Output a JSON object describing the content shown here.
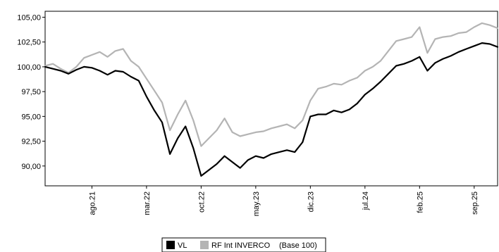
{
  "chart_data": {
    "type": "line",
    "title": "",
    "xlabel": "",
    "ylabel": "",
    "ylim": [
      88.0,
      105.6
    ],
    "x_range": [
      "2021-02",
      "2025-12"
    ],
    "y_ticks": [
      "105,00",
      "102,50",
      "100,00",
      "97,50",
      "95,00",
      "92,50",
      "90,00"
    ],
    "y_tick_values": [
      105.0,
      102.5,
      100.0,
      97.5,
      95.0,
      92.5,
      90.0
    ],
    "x_ticks": [
      {
        "label": "ago.21",
        "date": "2021-08"
      },
      {
        "label": "mar.22",
        "date": "2022-03"
      },
      {
        "label": "oct.22",
        "date": "2022-10"
      },
      {
        "label": "may.23",
        "date": "2023-05"
      },
      {
        "label": "dic.23",
        "date": "2023-12"
      },
      {
        "label": "jul.24",
        "date": "2024-07"
      },
      {
        "label": "feb.25",
        "date": "2025-02"
      },
      {
        "label": "sep.25",
        "date": "2025-09"
      }
    ],
    "grid": false,
    "legend_position": "bottom-center",
    "legend_note": "(Base 100)",
    "series": [
      {
        "name": "VL",
        "color": "#000000",
        "points": [
          [
            "2021-02",
            100.0
          ],
          [
            "2021-03",
            99.8
          ],
          [
            "2021-04",
            99.6
          ],
          [
            "2021-05",
            99.3
          ],
          [
            "2021-06",
            99.7
          ],
          [
            "2021-07",
            100.0
          ],
          [
            "2021-08",
            99.9
          ],
          [
            "2021-09",
            99.6
          ],
          [
            "2021-10",
            99.2
          ],
          [
            "2021-11",
            99.6
          ],
          [
            "2021-12",
            99.5
          ],
          [
            "2022-01",
            99.0
          ],
          [
            "2022-02",
            98.6
          ],
          [
            "2022-03",
            97.0
          ],
          [
            "2022-04",
            95.6
          ],
          [
            "2022-05",
            94.4
          ],
          [
            "2022-06",
            91.2
          ],
          [
            "2022-07",
            92.8
          ],
          [
            "2022-08",
            94.0
          ],
          [
            "2022-09",
            91.8
          ],
          [
            "2022-10",
            89.0
          ],
          [
            "2022-11",
            89.6
          ],
          [
            "2022-12",
            90.2
          ],
          [
            "2023-01",
            91.0
          ],
          [
            "2023-02",
            90.4
          ],
          [
            "2023-03",
            89.8
          ],
          [
            "2023-04",
            90.6
          ],
          [
            "2023-05",
            91.0
          ],
          [
            "2023-06",
            90.8
          ],
          [
            "2023-07",
            91.2
          ],
          [
            "2023-08",
            91.4
          ],
          [
            "2023-09",
            91.6
          ],
          [
            "2023-10",
            91.4
          ],
          [
            "2023-11",
            92.4
          ],
          [
            "2023-12",
            95.0
          ],
          [
            "2024-01",
            95.2
          ],
          [
            "2024-02",
            95.2
          ],
          [
            "2024-03",
            95.6
          ],
          [
            "2024-04",
            95.4
          ],
          [
            "2024-05",
            95.7
          ],
          [
            "2024-06",
            96.3
          ],
          [
            "2024-07",
            97.2
          ],
          [
            "2024-08",
            97.8
          ],
          [
            "2024-09",
            98.5
          ],
          [
            "2024-10",
            99.3
          ],
          [
            "2024-11",
            100.1
          ],
          [
            "2024-12",
            100.3
          ],
          [
            "2025-01",
            100.6
          ],
          [
            "2025-02",
            101.0
          ],
          [
            "2025-03",
            99.6
          ],
          [
            "2025-04",
            100.4
          ],
          [
            "2025-05",
            100.8
          ],
          [
            "2025-06",
            101.1
          ],
          [
            "2025-07",
            101.5
          ],
          [
            "2025-08",
            101.8
          ],
          [
            "2025-09",
            102.1
          ],
          [
            "2025-10",
            102.4
          ],
          [
            "2025-11",
            102.3
          ],
          [
            "2025-12",
            102.0
          ]
        ]
      },
      {
        "name": "RF Int INVERCO",
        "color": "#b4b4b4",
        "points": [
          [
            "2021-02",
            100.1
          ],
          [
            "2021-03",
            100.3
          ],
          [
            "2021-04",
            99.8
          ],
          [
            "2021-05",
            99.4
          ],
          [
            "2021-06",
            100.0
          ],
          [
            "2021-07",
            100.9
          ],
          [
            "2021-08",
            101.2
          ],
          [
            "2021-09",
            101.5
          ],
          [
            "2021-10",
            101.0
          ],
          [
            "2021-11",
            101.6
          ],
          [
            "2021-12",
            101.8
          ],
          [
            "2022-01",
            100.6
          ],
          [
            "2022-02",
            100.0
          ],
          [
            "2022-03",
            98.8
          ],
          [
            "2022-04",
            97.6
          ],
          [
            "2022-05",
            96.4
          ],
          [
            "2022-06",
            93.6
          ],
          [
            "2022-07",
            95.2
          ],
          [
            "2022-08",
            96.6
          ],
          [
            "2022-09",
            94.6
          ],
          [
            "2022-10",
            92.0
          ],
          [
            "2022-11",
            92.8
          ],
          [
            "2022-12",
            93.6
          ],
          [
            "2023-01",
            94.8
          ],
          [
            "2023-02",
            93.4
          ],
          [
            "2023-03",
            93.0
          ],
          [
            "2023-04",
            93.2
          ],
          [
            "2023-05",
            93.4
          ],
          [
            "2023-06",
            93.5
          ],
          [
            "2023-07",
            93.8
          ],
          [
            "2023-08",
            94.0
          ],
          [
            "2023-09",
            94.2
          ],
          [
            "2023-10",
            93.8
          ],
          [
            "2023-11",
            94.6
          ],
          [
            "2023-12",
            96.6
          ],
          [
            "2024-01",
            97.8
          ],
          [
            "2024-02",
            98.0
          ],
          [
            "2024-03",
            98.3
          ],
          [
            "2024-04",
            98.2
          ],
          [
            "2024-05",
            98.6
          ],
          [
            "2024-06",
            98.9
          ],
          [
            "2024-07",
            99.6
          ],
          [
            "2024-08",
            100.0
          ],
          [
            "2024-09",
            100.6
          ],
          [
            "2024-10",
            101.6
          ],
          [
            "2024-11",
            102.6
          ],
          [
            "2024-12",
            102.8
          ],
          [
            "2025-01",
            103.0
          ],
          [
            "2025-02",
            104.0
          ],
          [
            "2025-03",
            101.4
          ],
          [
            "2025-04",
            102.8
          ],
          [
            "2025-05",
            103.0
          ],
          [
            "2025-06",
            103.1
          ],
          [
            "2025-07",
            103.4
          ],
          [
            "2025-08",
            103.5
          ],
          [
            "2025-09",
            104.0
          ],
          [
            "2025-10",
            104.4
          ],
          [
            "2025-11",
            104.2
          ],
          [
            "2025-12",
            103.9
          ]
        ]
      }
    ]
  }
}
